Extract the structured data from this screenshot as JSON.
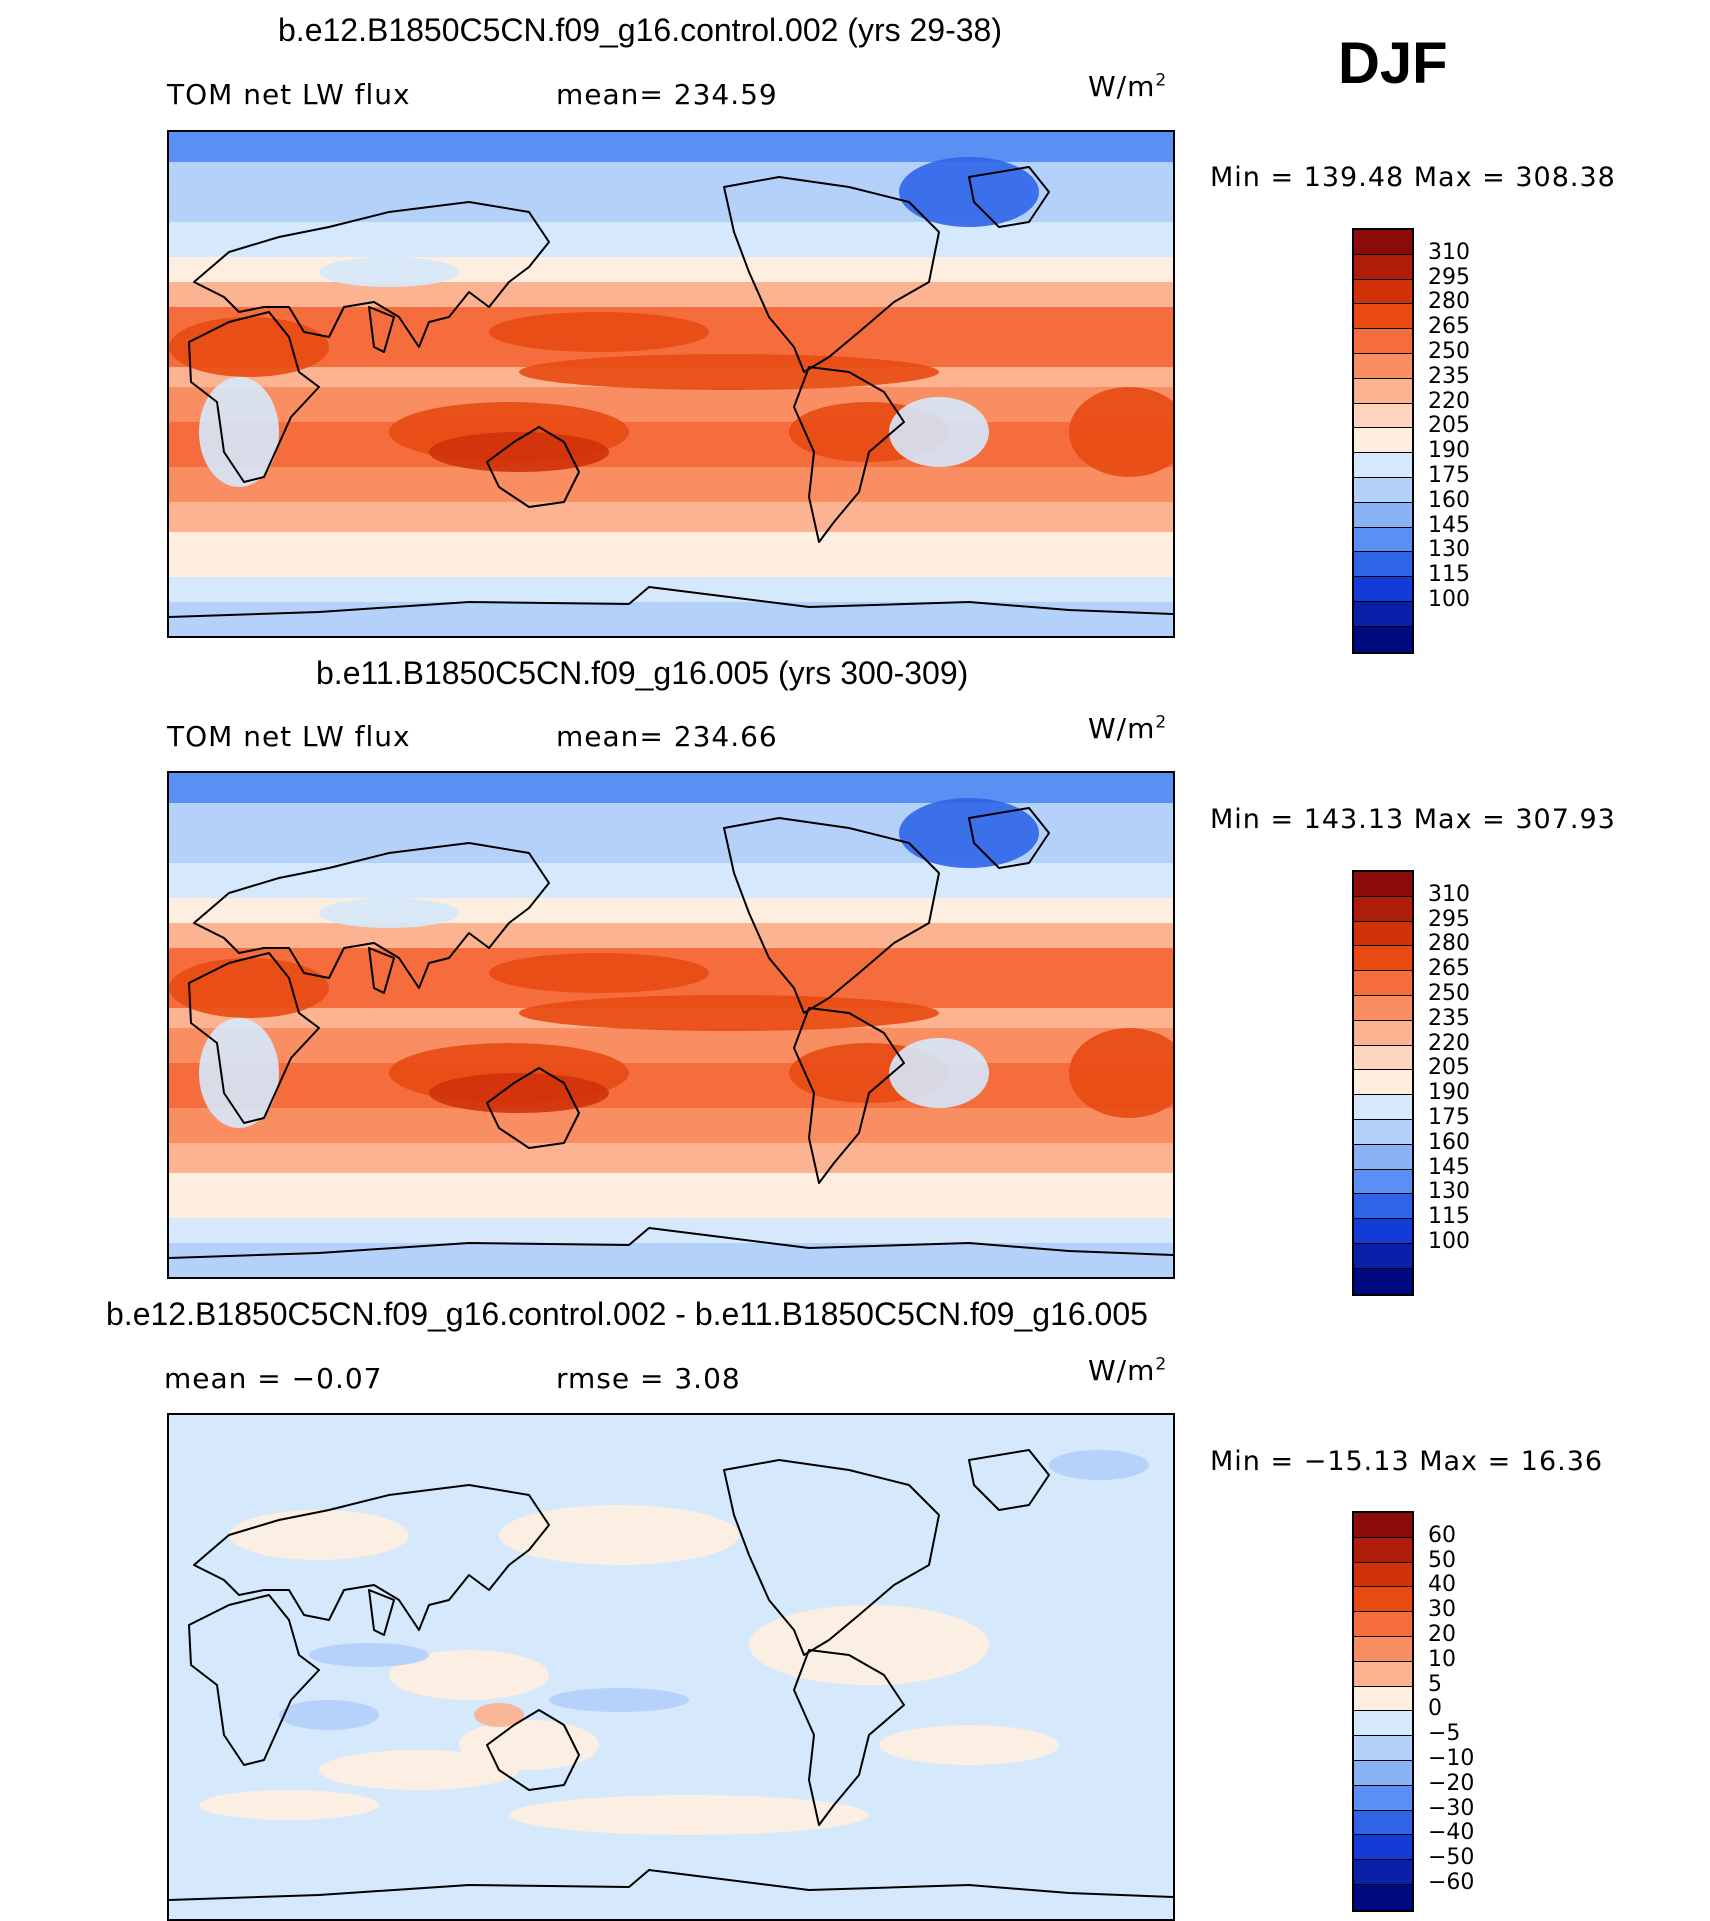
{
  "season": "DJF",
  "units_base": "W/m",
  "units_exp": "2",
  "panels": [
    {
      "title": "b.e12.B1850C5CN.f09_g16.control.002 (yrs 29-38)",
      "left_label": "TOM net LW flux",
      "right_label": "mean=  234.59",
      "minmax": "Min  =  139.48  Max  =  308.38",
      "colorbar": "abs"
    },
    {
      "title": "b.e11.B1850C5CN.f09_g16.005 (yrs 300-309)",
      "left_label": "TOM net LW flux",
      "right_label": "mean=  234.66",
      "minmax": "Min  =  143.13  Max  =  307.93",
      "colorbar": "abs"
    },
    {
      "title": "b.e12.B1850C5CN.f09_g16.control.002 - b.e11.B1850C5CN.f09_g16.005",
      "left_label": "mean =    −0.07",
      "right_label": "rmse =      3.08",
      "minmax": "Min  =  −15.13  Max  =    16.36",
      "colorbar": "diff"
    }
  ],
  "colorbars": {
    "abs": {
      "labels": [
        "310",
        "295",
        "280",
        "265",
        "250",
        "235",
        "220",
        "205",
        "190",
        "175",
        "160",
        "145",
        "130",
        "115",
        "100"
      ],
      "colors": [
        "#8b0a0a",
        "#b01c0a",
        "#d0320a",
        "#e84a12",
        "#f56d3c",
        "#f98e63",
        "#fbb392",
        "#fdd5bf",
        "#fdeee0",
        "#d6e8fb",
        "#b4d1fa",
        "#8ab3f7",
        "#5a8ff3",
        "#2f64e8",
        "#123bd8",
        "#0a20a8",
        "#000a80"
      ]
    },
    "diff": {
      "labels": [
        "60",
        "50",
        "40",
        "30",
        "20",
        "10",
        "5",
        "0",
        "−5",
        "−10",
        "−20",
        "−30",
        "−40",
        "−50",
        "−60"
      ],
      "colors": [
        "#8b0a0a",
        "#b01c0a",
        "#d0320a",
        "#e84a12",
        "#f56d3c",
        "#f98e63",
        "#fbb392",
        "#fdeee0",
        "#d6e8fb",
        "#b4d1fa",
        "#8ab3f7",
        "#5a8ff3",
        "#2f64e8",
        "#123bd8",
        "#0a20a8",
        "#000a80"
      ]
    }
  }
}
